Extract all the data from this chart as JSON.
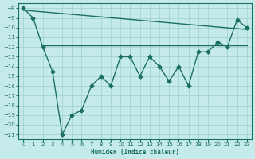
{
  "line_zigzag": {
    "x": [
      0,
      1,
      2,
      3,
      4,
      5,
      6,
      7,
      8,
      9,
      10,
      11,
      12,
      13,
      14,
      15,
      16,
      17,
      18,
      19,
      20,
      21,
      22,
      23
    ],
    "y": [
      -8,
      -9,
      -12,
      -14.5,
      -21,
      -19,
      -18.5,
      -16,
      -15,
      -16,
      -13,
      -13,
      -15,
      -13,
      -14,
      -15.5,
      -14,
      -16,
      -12.5,
      -12.5,
      -11.5,
      -12,
      -9.2,
      -10
    ],
    "has_markers": true
  },
  "line_flat": {
    "x": [
      2,
      23
    ],
    "y": [
      -11.8,
      -11.8
    ],
    "has_markers": false
  },
  "line_trend": {
    "x": [
      0,
      23
    ],
    "y": [
      -8.2,
      -10.2
    ],
    "has_markers": false
  },
  "color": "#1a7060",
  "bg_color": "#c5eaea",
  "grid_color": "#9ecece",
  "xlabel": "Humidex (Indice chaleur)",
  "xlim": [
    -0.5,
    23.5
  ],
  "ylim": [
    -21.5,
    -7.5
  ],
  "yticks": [
    -8,
    -9,
    -10,
    -11,
    -12,
    -13,
    -14,
    -15,
    -16,
    -17,
    -18,
    -19,
    -20,
    -21
  ],
  "xticks": [
    0,
    1,
    2,
    3,
    4,
    5,
    6,
    7,
    8,
    9,
    10,
    11,
    12,
    13,
    14,
    15,
    16,
    17,
    18,
    19,
    20,
    21,
    22,
    23
  ],
  "marker": "D",
  "markersize": 2.5,
  "linewidth": 1.0
}
